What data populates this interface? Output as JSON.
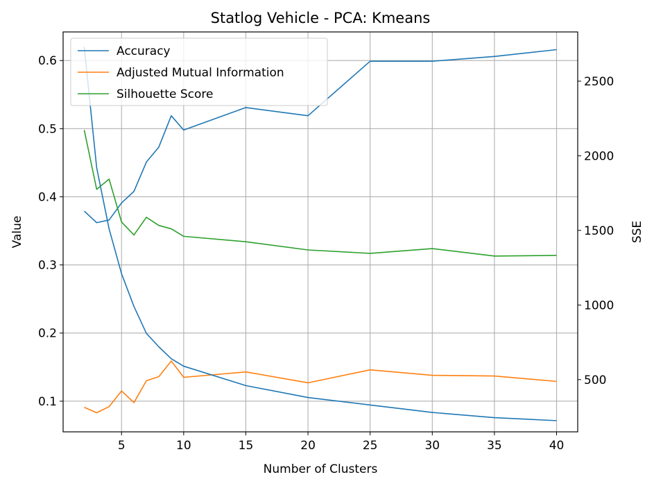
{
  "chart_data": {
    "type": "line",
    "title": "Statlog Vehicle - PCA: Kmeans",
    "xlabel": "Number of Clusters",
    "ylabel": "Value",
    "ylabel_right": "SSE",
    "x": [
      2,
      3,
      4,
      5,
      6,
      7,
      8,
      9,
      10,
      15,
      20,
      25,
      30,
      35,
      40
    ],
    "xlim": [
      0.3,
      41.7
    ],
    "ylim": [
      0.055,
      0.642
    ],
    "ylim_right": [
      150,
      2830
    ],
    "xticks": [
      5,
      10,
      15,
      20,
      25,
      30,
      35,
      40
    ],
    "yticks": [
      0.1,
      0.2,
      0.3,
      0.4,
      0.5,
      0.6
    ],
    "yticks_right": [
      500,
      1000,
      1500,
      2000,
      2500
    ],
    "grid": true,
    "legend_position": "top-left",
    "series": [
      {
        "name": "Accuracy",
        "axis": "left",
        "color": "#1f77b4",
        "values": [
          0.379,
          0.362,
          0.366,
          0.391,
          0.408,
          0.451,
          0.473,
          0.519,
          0.498,
          0.531,
          0.519,
          0.599,
          0.599,
          0.606,
          0.616
        ]
      },
      {
        "name": "Adjusted Mutual Information",
        "axis": "left",
        "color": "#ff7f0e",
        "values": [
          0.091,
          0.083,
          0.092,
          0.115,
          0.098,
          0.13,
          0.136,
          0.159,
          0.135,
          0.143,
          0.127,
          0.146,
          0.138,
          0.137,
          0.129
        ]
      },
      {
        "name": "Silhouette Score",
        "axis": "left",
        "color": "#2ca02c",
        "values": [
          0.498,
          0.411,
          0.426,
          0.363,
          0.344,
          0.37,
          0.358,
          0.353,
          0.342,
          0.334,
          0.322,
          0.317,
          0.324,
          0.313,
          0.314
        ]
      },
      {
        "axis": "right",
        "color": "#1f77b4",
        "values": [
          2730,
          1920,
          1510,
          1210,
          990,
          810,
          720,
          640,
          590,
          460,
          380,
          330,
          280,
          245,
          225
        ]
      }
    ]
  }
}
